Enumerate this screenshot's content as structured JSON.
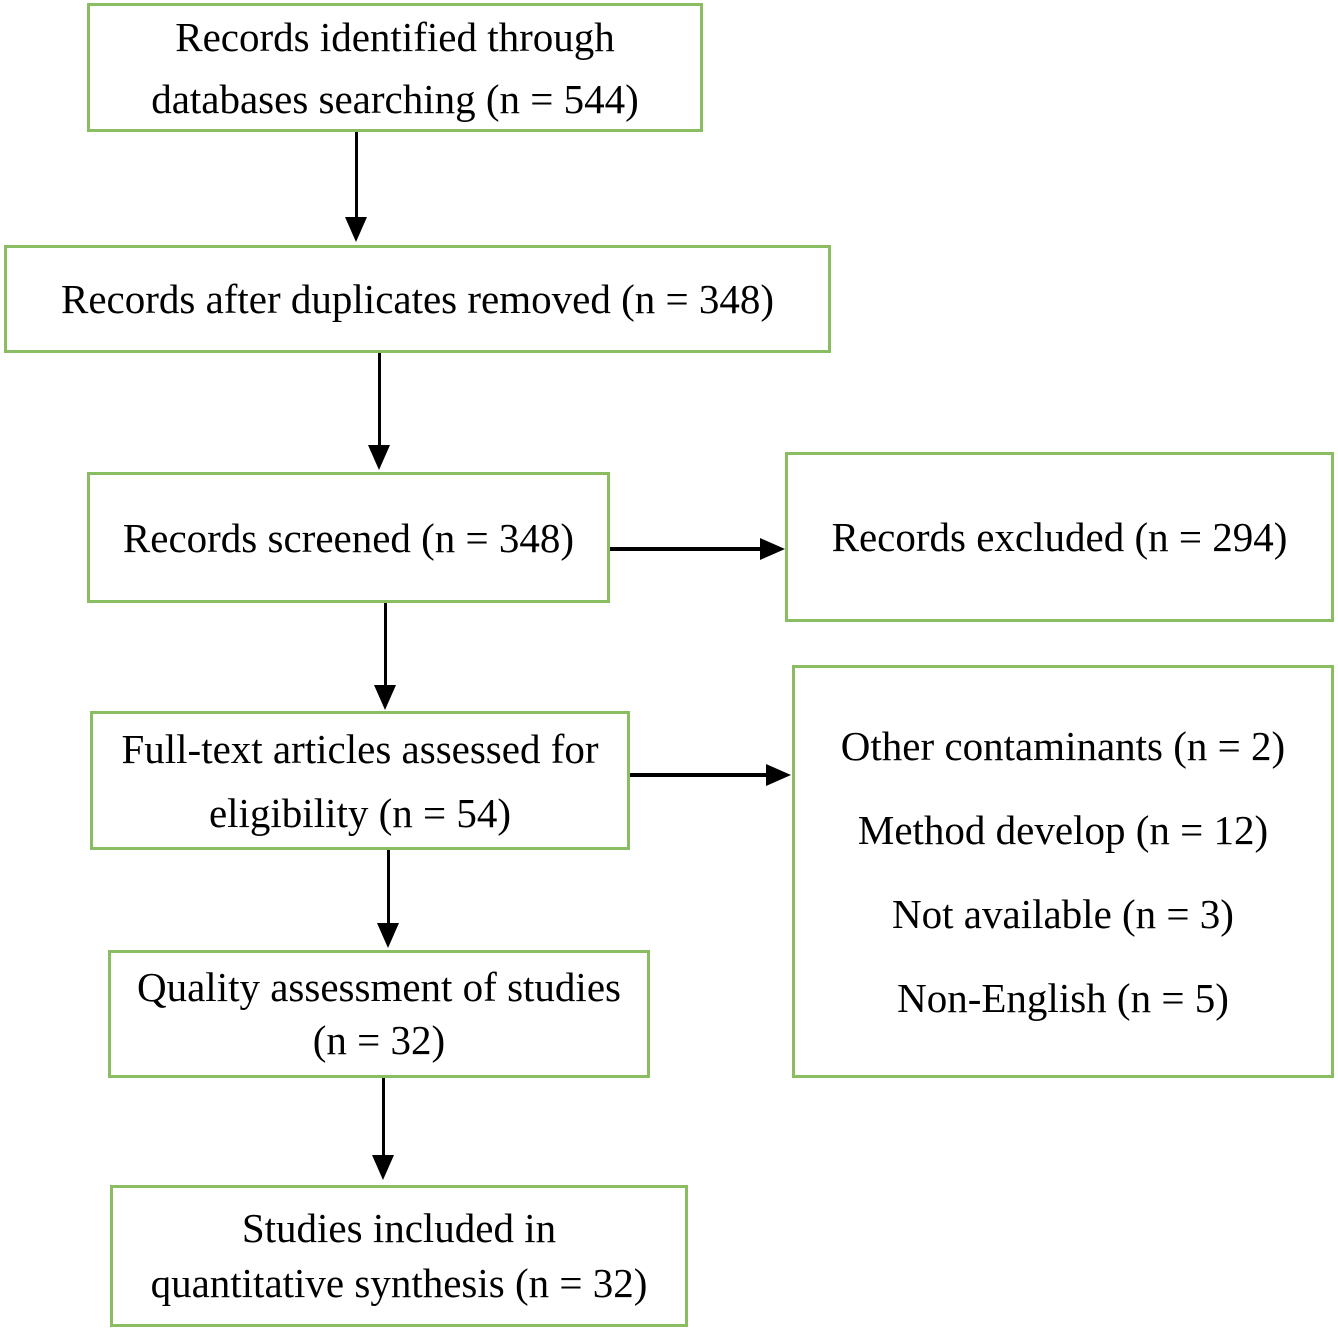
{
  "colors": {
    "box_border": "#8abc62",
    "arrow": "#000000",
    "text": "#000000",
    "background": "#ffffff"
  },
  "flow": {
    "identification": {
      "line1": "Records identified through",
      "line2": "databases searching (n = 544)",
      "n": 544
    },
    "after_duplicates": {
      "line1": "Records after duplicates removed (n = 348)",
      "n": 348
    },
    "screened": {
      "line1": "Records screened (n = 348)",
      "n": 348
    },
    "excluded": {
      "line1": "Records excluded (n = 294)",
      "n": 294
    },
    "full_text": {
      "line1": "Full-text articles assessed for",
      "line2": "eligibility (n = 54)",
      "n": 54
    },
    "exclusion_reasons": {
      "line1": "Other contaminants (n = 2)",
      "line2": "Method develop (n = 12)",
      "line3": "Not available (n = 3)",
      "line4": "Non-English (n = 5)"
    },
    "quality": {
      "line1": "Quality assessment of studies",
      "line2": "(n = 32)",
      "n": 32
    },
    "included": {
      "line1": "Studies included in",
      "line2": "quantitative synthesis (n = 32)",
      "n": 32
    }
  }
}
